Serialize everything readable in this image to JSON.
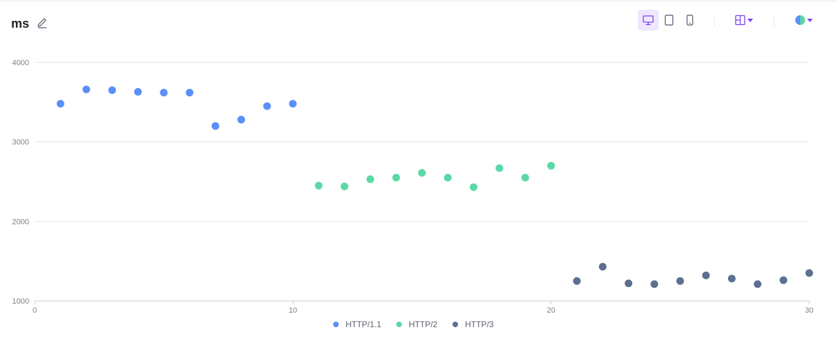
{
  "title": "ms",
  "toolbar": {
    "edit_icon": "pencil-icon",
    "devices": [
      {
        "name": "desktop",
        "icon": "monitor-icon",
        "active": true
      },
      {
        "name": "tablet",
        "icon": "tablet-icon",
        "active": false
      },
      {
        "name": "mobile",
        "icon": "phone-icon",
        "active": false
      }
    ],
    "layout_icon": "layout-icon",
    "theme_icon": "theme-icon",
    "accent_color": "#7b3ff2"
  },
  "chart_data": {
    "type": "scatter",
    "title": "",
    "xlabel": "",
    "ylabel": "",
    "xlim": [
      0,
      30
    ],
    "ylim": [
      1000,
      4000
    ],
    "xticks": [
      0,
      10,
      20,
      30
    ],
    "yticks": [
      1000,
      2000,
      3000,
      4000
    ],
    "grid": true,
    "legend_position": "bottom-center",
    "series": [
      {
        "name": "HTTP/1.1",
        "color": "#5b8ff9",
        "x": [
          1,
          2,
          3,
          4,
          5,
          6,
          7,
          8,
          9,
          10
        ],
        "y": [
          3480,
          3660,
          3650,
          3630,
          3620,
          3620,
          3200,
          3280,
          3450,
          3480
        ]
      },
      {
        "name": "HTTP/2",
        "color": "#5ad8a6",
        "x": [
          11,
          12,
          13,
          14,
          15,
          16,
          17,
          18,
          19,
          20
        ],
        "y": [
          2450,
          2440,
          2530,
          2550,
          2610,
          2550,
          2430,
          2670,
          2550,
          2700
        ]
      },
      {
        "name": "HTTP/3",
        "color": "#5d7092",
        "x": [
          21,
          22,
          23,
          24,
          25,
          26,
          27,
          28,
          29,
          30
        ],
        "y": [
          1250,
          1430,
          1220,
          1210,
          1250,
          1320,
          1280,
          1210,
          1260,
          1350
        ]
      }
    ]
  }
}
